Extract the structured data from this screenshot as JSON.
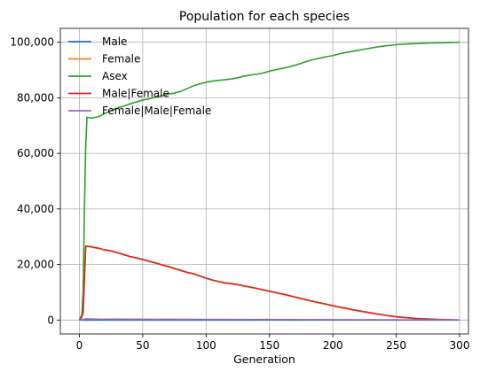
{
  "chart_data": {
    "type": "line",
    "title": "Population for each species",
    "xlabel": "Generation",
    "ylabel": "",
    "xlim": [
      -15,
      307
    ],
    "ylim": [
      -5000,
      105000
    ],
    "xticks": [
      0,
      50,
      100,
      150,
      200,
      250,
      300
    ],
    "yticks": [
      0,
      20000,
      40000,
      60000,
      80000,
      100000
    ],
    "xtick_labels": [
      "0",
      "50",
      "100",
      "150",
      "200",
      "250",
      "300"
    ],
    "ytick_labels": [
      "0",
      "20,000",
      "40,000",
      "60,000",
      "80,000",
      "100,000"
    ],
    "grid": true,
    "legend_position": "top-left",
    "series": [
      {
        "name": "Male",
        "color": "#1f77b4",
        "x": [
          0,
          300
        ],
        "y": [
          0,
          0
        ]
      },
      {
        "name": "Female",
        "color": "#ff7f0e",
        "x": [
          0,
          1,
          3,
          5,
          8,
          10,
          15,
          20,
          25,
          30,
          35,
          40,
          45,
          50,
          55,
          60,
          65,
          70,
          75,
          80,
          85,
          90,
          95,
          100,
          105,
          110,
          115,
          120,
          125,
          130,
          135,
          140,
          145,
          150,
          155,
          160,
          165,
          170,
          175,
          180,
          185,
          190,
          195,
          200,
          205,
          210,
          215,
          220,
          225,
          230,
          235,
          240,
          245,
          250,
          255,
          260,
          265,
          270,
          275,
          280,
          285,
          290,
          295,
          300
        ],
        "y": [
          0,
          200,
          2500,
          26500,
          26400,
          26200,
          25800,
          25200,
          24800,
          24200,
          23500,
          22800,
          22300,
          21700,
          21100,
          20500,
          19800,
          19200,
          18500,
          17800,
          17100,
          16600,
          15800,
          15000,
          14300,
          13800,
          13300,
          13000,
          12700,
          12200,
          11800,
          11300,
          10800,
          10300,
          9800,
          9300,
          8800,
          8200,
          7700,
          7100,
          6600,
          6100,
          5600,
          5100,
          4600,
          4200,
          3700,
          3300,
          2900,
          2500,
          2100,
          1800,
          1400,
          1100,
          900,
          700,
          500,
          400,
          300,
          200,
          150,
          100,
          50,
          0
        ]
      },
      {
        "name": "Asex",
        "color": "#2ca02c",
        "x": [
          0,
          2,
          3,
          4,
          5,
          6,
          8,
          10,
          15,
          20,
          25,
          30,
          35,
          40,
          45,
          50,
          55,
          60,
          65,
          70,
          75,
          80,
          85,
          90,
          95,
          100,
          105,
          110,
          115,
          120,
          125,
          130,
          135,
          140,
          145,
          150,
          155,
          160,
          165,
          170,
          175,
          180,
          185,
          190,
          195,
          200,
          205,
          210,
          215,
          220,
          225,
          230,
          235,
          240,
          245,
          250,
          255,
          260,
          265,
          270,
          275,
          280,
          285,
          290,
          295,
          300
        ],
        "y": [
          0,
          2000,
          10000,
          40000,
          62000,
          73000,
          72800,
          72700,
          73200,
          74300,
          75400,
          76400,
          77000,
          77800,
          78500,
          79200,
          79600,
          80200,
          80700,
          81300,
          81700,
          82300,
          83300,
          84300,
          85000,
          85600,
          86000,
          86300,
          86500,
          86800,
          87200,
          87800,
          88200,
          88500,
          88900,
          89600,
          90100,
          90600,
          91100,
          91700,
          92400,
          93200,
          93800,
          94300,
          94800,
          95200,
          95800,
          96300,
          96700,
          97100,
          97500,
          97900,
          98300,
          98600,
          98900,
          99100,
          99300,
          99400,
          99500,
          99600,
          99700,
          99750,
          99800,
          99850,
          99900,
          100000
        ]
      },
      {
        "name": "Male|Female",
        "color": "#d62728",
        "x": [
          0,
          1,
          3,
          5,
          8,
          10,
          15,
          20,
          25,
          30,
          35,
          40,
          45,
          50,
          55,
          60,
          65,
          70,
          75,
          80,
          85,
          90,
          95,
          100,
          105,
          110,
          115,
          120,
          125,
          130,
          135,
          140,
          145,
          150,
          155,
          160,
          165,
          170,
          175,
          180,
          185,
          190,
          195,
          200,
          205,
          210,
          215,
          220,
          225,
          230,
          235,
          240,
          245,
          250,
          255,
          260,
          265,
          270,
          275,
          280,
          285,
          290,
          295,
          300
        ],
        "y": [
          0,
          200,
          2500,
          26600,
          26500,
          26300,
          25900,
          25300,
          24900,
          24300,
          23600,
          22900,
          22400,
          21800,
          21200,
          20600,
          19900,
          19300,
          18600,
          17900,
          17200,
          16700,
          15900,
          15100,
          14400,
          13900,
          13400,
          13100,
          12800,
          12300,
          11900,
          11400,
          10900,
          10400,
          9900,
          9400,
          8900,
          8300,
          7800,
          7200,
          6700,
          6200,
          5700,
          5200,
          4700,
          4300,
          3800,
          3400,
          3000,
          2600,
          2200,
          1900,
          1500,
          1200,
          1000,
          800,
          600,
          500,
          400,
          300,
          200,
          150,
          100,
          50
        ]
      },
      {
        "name": "Female|Male|Female",
        "color": "#9467bd",
        "x": [
          0,
          5,
          10,
          20,
          30,
          40,
          50,
          60,
          70,
          80,
          90,
          100,
          110,
          120,
          130,
          140,
          150,
          160,
          170,
          180,
          190,
          200,
          210,
          220,
          230,
          240,
          250,
          260,
          270,
          280,
          290,
          300
        ],
        "y": [
          0,
          400,
          350,
          300,
          320,
          280,
          300,
          260,
          280,
          240,
          260,
          220,
          240,
          200,
          220,
          180,
          200,
          160,
          180,
          140,
          160,
          120,
          140,
          100,
          120,
          80,
          100,
          60,
          80,
          40,
          60,
          20
        ]
      }
    ]
  }
}
